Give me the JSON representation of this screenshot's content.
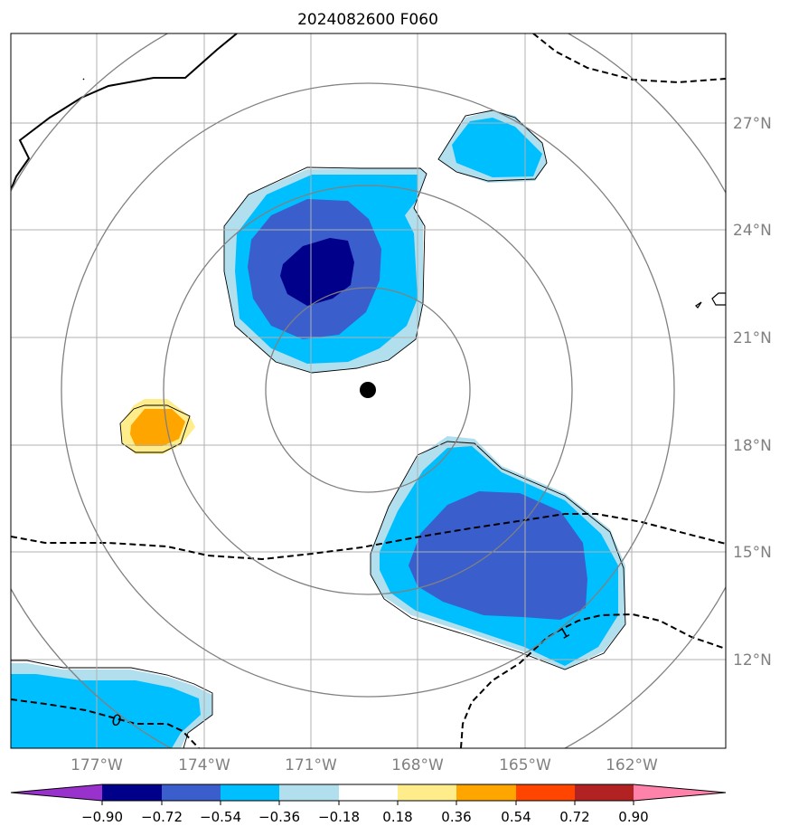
{
  "title": "2024082600 F060",
  "colors": {
    "c_m090_below": "#9932cc",
    "c_m090_m072": "#00008b",
    "c_m072_m054": "#3a5fcd",
    "c_m054_m036": "#00bfff",
    "c_m036_m018": "#b2dfee",
    "c_m018_018": "#ffffff",
    "c_018_036": "#ffec8b",
    "c_036_054": "#ffa500",
    "c_054_072": "#ff4500",
    "c_072_090": "#b22222",
    "c_090_above": "#ff82ab",
    "gridline": "#b0b0b0",
    "range_ring": "#808080",
    "axis_label": "#808080"
  },
  "map": {
    "lon_labels": [
      "177°W",
      "174°W",
      "171°W",
      "168°W",
      "165°W",
      "162°W"
    ],
    "lat_labels": [
      "27°N",
      "24°N",
      "21°N",
      "18°N",
      "15°N",
      "12°N"
    ],
    "center_marker": "storm-center-dot",
    "contour_labels": [
      "0",
      "1"
    ]
  },
  "colorbar": {
    "ticks": [
      "−0.90",
      "−0.72",
      "−0.54",
      "−0.36",
      "−0.18",
      "0.18",
      "0.36",
      "0.54",
      "0.72",
      "0.90"
    ],
    "extend": "both"
  }
}
